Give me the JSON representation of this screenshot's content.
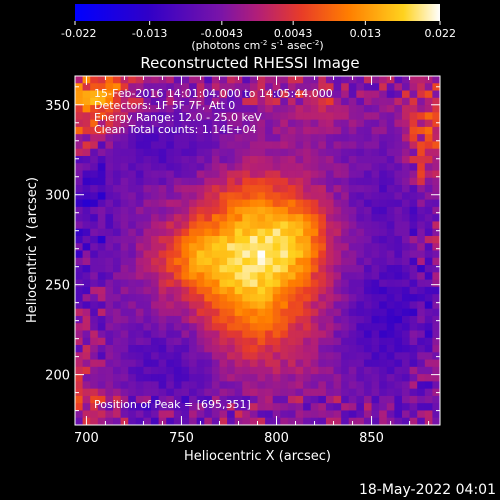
{
  "chart_data": {
    "type": "heatmap",
    "title": "Reconstructed RHESSI Image",
    "xlabel": "Heliocentric X (arcsec)",
    "ylabel": "Heliocentric Y (arcsec)",
    "xlim": [
      694,
      886
    ],
    "ylim": [
      172,
      366
    ],
    "x_ticks": [
      700,
      750,
      800,
      850
    ],
    "y_ticks": [
      200,
      250,
      300,
      350
    ],
    "colorbar": {
      "range": [
        -0.022,
        0.022
      ],
      "tick_values": [
        -0.022,
        -0.013,
        -0.0043,
        0.0043,
        0.013,
        0.022
      ],
      "tick_labels": [
        "-0.022",
        "-0.013",
        "-0.0043",
        "0.0043",
        "0.013",
        "0.022"
      ],
      "unit_main": "(photons cm",
      "unit_exp1": "-2",
      "unit_mid1": " s",
      "unit_exp2": "-1",
      "unit_mid2": " asec",
      "unit_exp3": "-2",
      "unit_end": ")"
    },
    "annotations": [
      "15-Feb-2016 14:01:04.000 to 14:05:44.000",
      "Detectors: 1F 5F 7F, Att 0",
      "Energy Range: 12.0 - 25.0 keV",
      "Clean     Total counts: 1.14E+04"
    ],
    "peak_label": "Position of Peak = [695,351]",
    "peak": [
      695,
      351
    ],
    "sources": [
      {
        "x": 788,
        "y": 262,
        "sx": 22,
        "sy": 34,
        "amp": 0.022
      },
      {
        "x": 755,
        "y": 265,
        "sx": 14,
        "sy": 12,
        "amp": 0.009
      },
      {
        "x": 812,
        "y": 276,
        "sx": 12,
        "sy": 14,
        "amp": 0.008
      },
      {
        "x": 700,
        "y": 348,
        "sx": 14,
        "sy": 20,
        "amp": 0.013
      },
      {
        "x": 715,
        "y": 358,
        "sx": 10,
        "sy": 8,
        "amp": 0.005
      },
      {
        "x": 880,
        "y": 330,
        "sx": 10,
        "sy": 30,
        "amp": 0.008
      },
      {
        "x": 700,
        "y": 190,
        "sx": 12,
        "sy": 14,
        "amp": 0.006
      },
      {
        "x": 820,
        "y": 350,
        "sx": 14,
        "sy": 10,
        "amp": 0.004
      },
      {
        "x": 740,
        "y": 325,
        "sx": 40,
        "sy": 14,
        "amp": -0.006
      },
      {
        "x": 700,
        "y": 285,
        "sx": 14,
        "sy": 26,
        "amp": -0.006
      },
      {
        "x": 860,
        "y": 230,
        "sx": 18,
        "sy": 26,
        "amp": -0.008
      },
      {
        "x": 745,
        "y": 205,
        "sx": 24,
        "sy": 18,
        "amp": -0.006
      },
      {
        "x": 860,
        "y": 300,
        "sx": 16,
        "sy": 20,
        "amp": -0.005
      }
    ],
    "background": -0.0035
  },
  "footer_date": "18-May-2022 04:01"
}
